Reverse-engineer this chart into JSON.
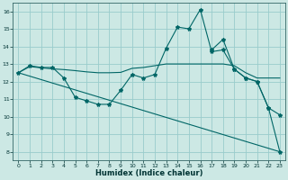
{
  "xlabel": "Humidex (Indice chaleur)",
  "bg_color": "#cce8e4",
  "grid_color": "#99cccc",
  "line_color": "#006666",
  "xlim": [
    -0.5,
    23.5
  ],
  "ylim": [
    7.5,
    16.5
  ],
  "xticks": [
    0,
    1,
    2,
    3,
    4,
    5,
    6,
    7,
    8,
    9,
    10,
    11,
    12,
    13,
    14,
    15,
    16,
    17,
    18,
    19,
    20,
    21,
    22,
    23
  ],
  "yticks": [
    8,
    9,
    10,
    11,
    12,
    13,
    14,
    15,
    16
  ],
  "line1_x": [
    0,
    1,
    2,
    3,
    4,
    5,
    6,
    7,
    8,
    9,
    10,
    11,
    12,
    13,
    14,
    15,
    16,
    17,
    18,
    19,
    20,
    21,
    22,
    23
  ],
  "line1_y": [
    12.5,
    12.9,
    12.8,
    12.8,
    12.2,
    11.1,
    10.9,
    10.7,
    10.7,
    11.5,
    12.4,
    12.2,
    12.4,
    13.9,
    15.1,
    15.0,
    16.1,
    13.7,
    13.8,
    12.7,
    12.2,
    12.0,
    10.5,
    10.1
  ],
  "line2_x": [
    0,
    1,
    2,
    3,
    4,
    5,
    6,
    7,
    8,
    9,
    10,
    11,
    12,
    13,
    14,
    15,
    16,
    17,
    18,
    19,
    20,
    21,
    22,
    23
  ],
  "line2_y": [
    12.5,
    12.85,
    12.78,
    12.72,
    12.68,
    12.62,
    12.55,
    12.5,
    12.5,
    12.52,
    12.75,
    12.8,
    12.9,
    13.0,
    13.0,
    13.0,
    13.0,
    13.0,
    13.0,
    12.9,
    12.5,
    12.2,
    12.2,
    12.2
  ],
  "line3_x": [
    0,
    23
  ],
  "line3_y": [
    12.5,
    8.0
  ],
  "line4_x": [
    17,
    18,
    19,
    20,
    21,
    22,
    23
  ],
  "line4_y": [
    13.8,
    14.4,
    12.7,
    12.2,
    12.0,
    10.5,
    8.0
  ]
}
